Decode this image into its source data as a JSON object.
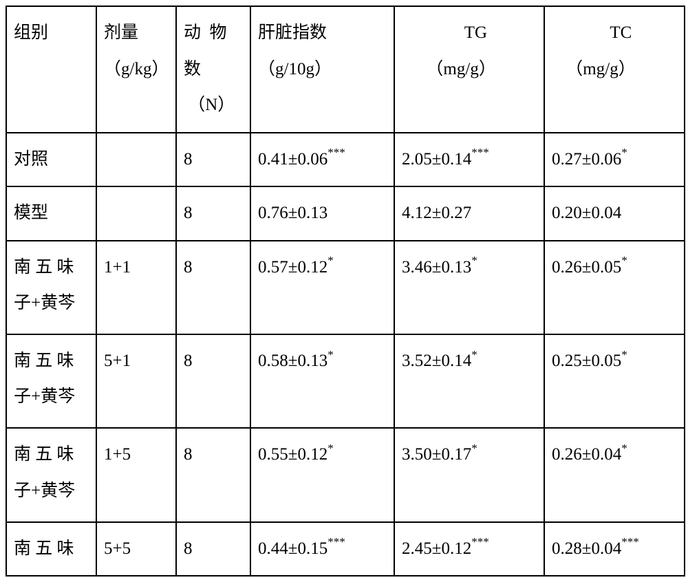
{
  "table": {
    "columns": [
      {
        "label": "组别",
        "unit": ""
      },
      {
        "label": "剂量",
        "unit": "（g/kg）"
      },
      {
        "label_part1": "动",
        "label_part2": "物",
        "label2": "数",
        "unit": "（N）"
      },
      {
        "label": "肝脏指数",
        "unit": "（g/10g）"
      },
      {
        "label": "TG",
        "unit": "（mg/g）"
      },
      {
        "label": "TC",
        "unit": "（mg/g）"
      }
    ],
    "rows": [
      {
        "group": "对照",
        "dose": "",
        "n": "8",
        "liver": "0.41±0.06",
        "liver_sup": "***",
        "tg": "2.05±0.14",
        "tg_sup": "***",
        "tc": "0.27±0.06",
        "tc_sup": "*"
      },
      {
        "group": "模型",
        "dose": "",
        "n": "8",
        "liver": "0.76±0.13",
        "liver_sup": "",
        "tg": "4.12±0.27",
        "tg_sup": "",
        "tc": "0.20±0.04",
        "tc_sup": ""
      },
      {
        "group": "南 五 味子+黄芩",
        "dose": "1+1",
        "n": "8",
        "liver": "0.57±0.12",
        "liver_sup": "*",
        "tg": "3.46±0.13",
        "tg_sup": "*",
        "tc": "0.26±0.05",
        "tc_sup": "*"
      },
      {
        "group": "南 五 味子+黄芩",
        "dose": "5+1",
        "n": "8",
        "liver": "0.58±0.13",
        "liver_sup": "*",
        "tg": "3.52±0.14",
        "tg_sup": "*",
        "tc": "0.25±0.05",
        "tc_sup": "*"
      },
      {
        "group": "南 五 味子+黄芩",
        "dose": "1+5",
        "n": "8",
        "liver": "0.55±0.12",
        "liver_sup": "*",
        "tg": "3.50±0.17",
        "tg_sup": "*",
        "tc": "0.26±0.04",
        "tc_sup": "*"
      },
      {
        "group": "南 五 味",
        "dose": "5+5",
        "n": "8",
        "liver": "0.44±0.15",
        "liver_sup": "***",
        "tg": "2.45±0.12",
        "tg_sup": "***",
        "tc": "0.28±0.04",
        "tc_sup": "***"
      }
    ]
  },
  "style": {
    "border_color": "#000000",
    "background": "#ffffff",
    "font_family": "SimSun",
    "font_size_pt": 18,
    "sup_font_size_pt": 12
  }
}
